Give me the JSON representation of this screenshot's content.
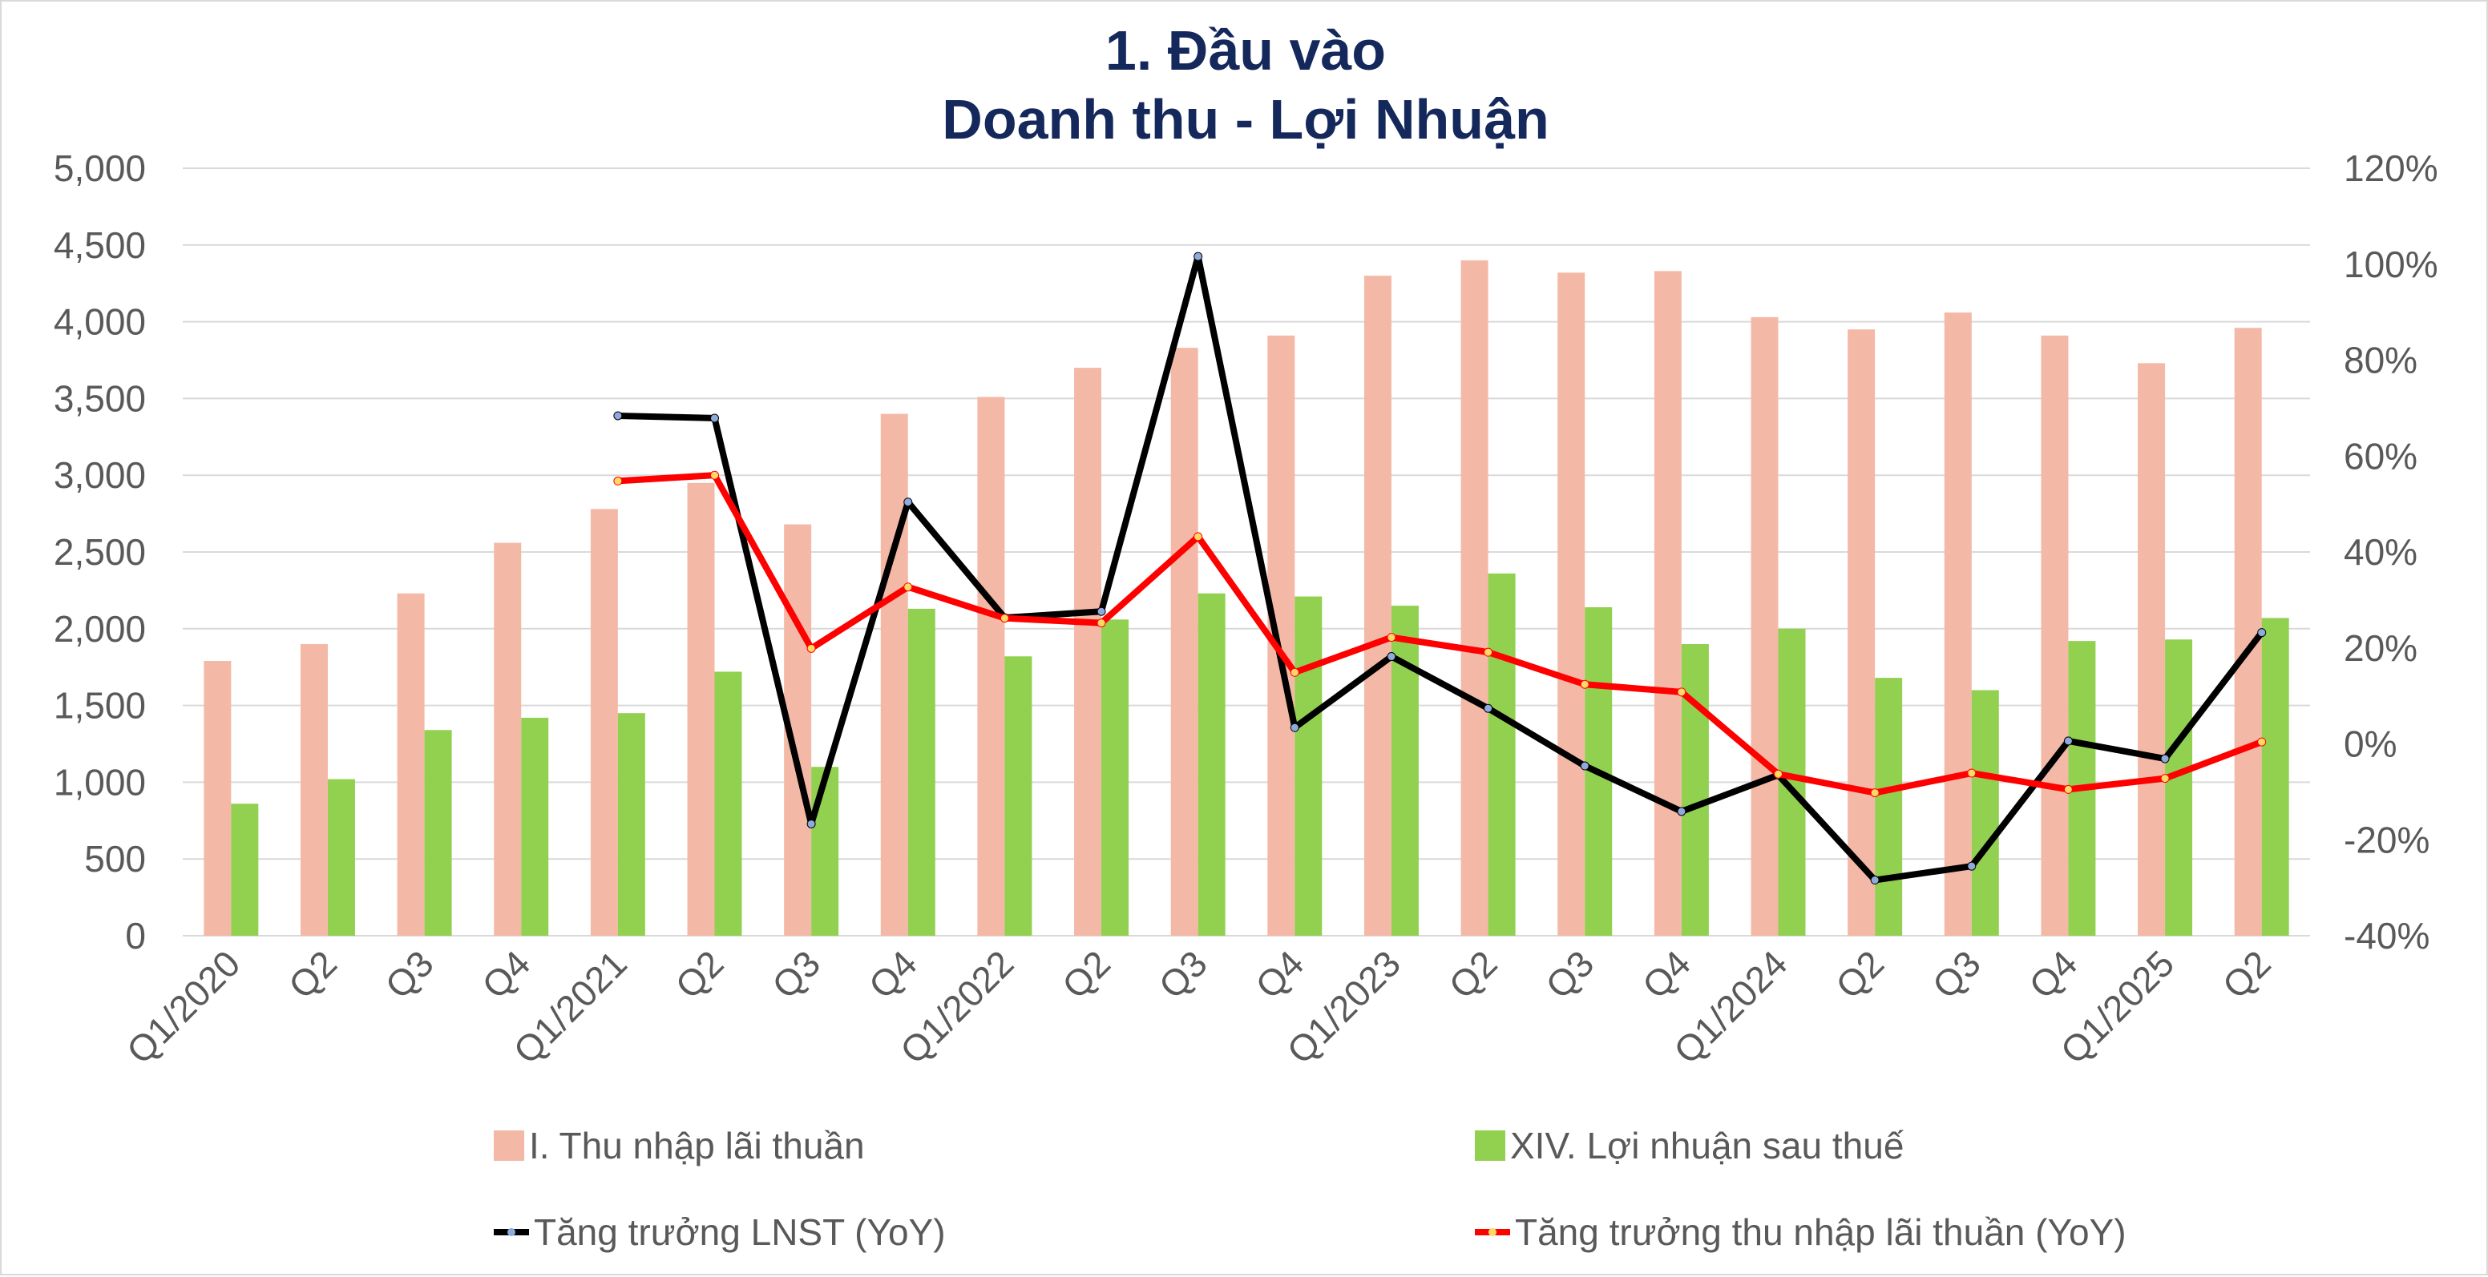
{
  "chart_data": {
    "type": "bar",
    "title": "1. Đầu vào",
    "subtitle": "Doanh thu - Lợi Nhuận",
    "categories": [
      "Q1/2020",
      "Q2",
      "Q3",
      "Q4",
      "Q1/2021",
      "Q2",
      "Q3",
      "Q4",
      "Q1/2022",
      "Q2",
      "Q3",
      "Q4",
      "Q1/2023",
      "Q2",
      "Q3",
      "Q4",
      "Q1/2024",
      "Q2",
      "Q3",
      "Q4",
      "Q1/2025",
      "Q2"
    ],
    "ylim": [
      0,
      5000
    ],
    "y_ticks": [
      "0",
      "500",
      "1,000",
      "1,500",
      "2,000",
      "2,500",
      "3,000",
      "3,500",
      "4,000",
      "4,500",
      "5,000"
    ],
    "y2lim": [
      -40,
      120
    ],
    "y2_ticks": [
      "-40%",
      "-20%",
      "0%",
      "20%",
      "40%",
      "60%",
      "80%",
      "100%",
      "120%"
    ],
    "grid": true,
    "legend_position": "bottom",
    "series": [
      {
        "name": "I. Thu nhập lãi thuần",
        "type": "bar",
        "axis": "left",
        "color": "#f4b9a6",
        "values": [
          1790,
          1900,
          2230,
          2560,
          2780,
          2950,
          2680,
          3400,
          3510,
          3700,
          3830,
          3910,
          4300,
          4400,
          4320,
          4330,
          4030,
          3950,
          4060,
          3910,
          3730,
          3960
        ]
      },
      {
        "name": "XIV. Lợi nhuận sau thuế",
        "type": "bar",
        "axis": "left",
        "color": "#92d050",
        "values": [
          860,
          1020,
          1340,
          1420,
          1450,
          1720,
          1100,
          2130,
          1820,
          2060,
          2230,
          2210,
          2150,
          2360,
          2140,
          1900,
          2000,
          1680,
          1600,
          1920,
          1930,
          2070
        ]
      },
      {
        "name": "Tăng trưởng LNST (YoY)",
        "type": "line",
        "axis": "right",
        "color": "#000000",
        "marker_color": "#8faadc",
        "values": [
          null,
          null,
          null,
          null,
          68.4,
          67.9,
          -16.7,
          50.4,
          26.3,
          27.6,
          101.6,
          3.4,
          18.2,
          7.4,
          -4.6,
          -14.1,
          -6.5,
          -28.4,
          -25.5,
          0.6,
          -3.1,
          23.2
        ]
      },
      {
        "name": "Tăng trưởng thu nhập lãi thuần (YoY)",
        "type": "line",
        "axis": "right",
        "color": "#ff0000",
        "marker_color": "#ffd966",
        "values": [
          null,
          null,
          null,
          null,
          54.8,
          56.0,
          19.9,
          32.7,
          26.2,
          25.2,
          43.2,
          14.9,
          22.2,
          19.1,
          12.4,
          10.8,
          -6.3,
          -10.2,
          -6.1,
          -9.5,
          -7.2,
          0.4
        ]
      }
    ]
  }
}
